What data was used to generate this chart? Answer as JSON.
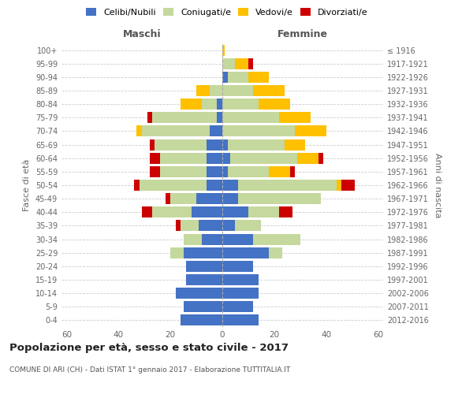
{
  "age_groups": [
    "0-4",
    "5-9",
    "10-14",
    "15-19",
    "20-24",
    "25-29",
    "30-34",
    "35-39",
    "40-44",
    "45-49",
    "50-54",
    "55-59",
    "60-64",
    "65-69",
    "70-74",
    "75-79",
    "80-84",
    "85-89",
    "90-94",
    "95-99",
    "100+"
  ],
  "birth_years": [
    "2012-2016",
    "2007-2011",
    "2002-2006",
    "1997-2001",
    "1992-1996",
    "1987-1991",
    "1982-1986",
    "1977-1981",
    "1972-1976",
    "1967-1971",
    "1962-1966",
    "1957-1961",
    "1952-1956",
    "1947-1951",
    "1942-1946",
    "1937-1941",
    "1932-1936",
    "1927-1931",
    "1922-1926",
    "1917-1921",
    "≤ 1916"
  ],
  "maschi": {
    "celibe": [
      16,
      15,
      18,
      14,
      14,
      15,
      8,
      9,
      12,
      10,
      6,
      6,
      6,
      6,
      5,
      2,
      2,
      0,
      0,
      0,
      0
    ],
    "coniugato": [
      0,
      0,
      0,
      0,
      0,
      5,
      7,
      7,
      15,
      10,
      26,
      18,
      18,
      20,
      26,
      25,
      6,
      5,
      0,
      0,
      0
    ],
    "vedovo": [
      0,
      0,
      0,
      0,
      0,
      0,
      0,
      0,
      0,
      0,
      0,
      0,
      0,
      0,
      2,
      0,
      8,
      5,
      0,
      0,
      0
    ],
    "divorziato": [
      0,
      0,
      0,
      0,
      0,
      0,
      0,
      2,
      4,
      2,
      2,
      4,
      4,
      2,
      0,
      2,
      0,
      0,
      0,
      0,
      0
    ]
  },
  "femmine": {
    "celibe": [
      14,
      12,
      14,
      14,
      12,
      18,
      12,
      5,
      10,
      6,
      6,
      2,
      3,
      2,
      0,
      0,
      0,
      0,
      2,
      0,
      0
    ],
    "coniugata": [
      0,
      0,
      0,
      0,
      0,
      5,
      18,
      10,
      12,
      32,
      38,
      16,
      26,
      22,
      28,
      22,
      14,
      12,
      8,
      5,
      0
    ],
    "vedova": [
      0,
      0,
      0,
      0,
      0,
      0,
      0,
      0,
      0,
      0,
      2,
      8,
      8,
      8,
      12,
      12,
      12,
      12,
      8,
      5,
      1
    ],
    "divorziata": [
      0,
      0,
      0,
      0,
      0,
      0,
      0,
      0,
      5,
      0,
      5,
      2,
      2,
      0,
      0,
      0,
      0,
      0,
      0,
      2,
      0
    ]
  },
  "colors": {
    "celibe": "#4472c4",
    "coniugato": "#c5d89d",
    "vedovo": "#ffc000",
    "divorziato": "#cc0000"
  },
  "legend_labels": [
    "Celibi/Nubili",
    "Coniugati/e",
    "Vedovi/e",
    "Divorziati/e"
  ],
  "title": "Popolazione per età, sesso e stato civile - 2017",
  "subtitle": "COMUNE DI ARI (CH) - Dati ISTAT 1° gennaio 2017 - Elaborazione TUTTITALIA.IT",
  "xlabel_left": "Maschi",
  "xlabel_right": "Femmine",
  "ylabel_left": "Fasce di età",
  "ylabel_right": "Anni di nascita",
  "xlim": 62,
  "bg_color": "#ffffff",
  "grid_color": "#cccccc"
}
